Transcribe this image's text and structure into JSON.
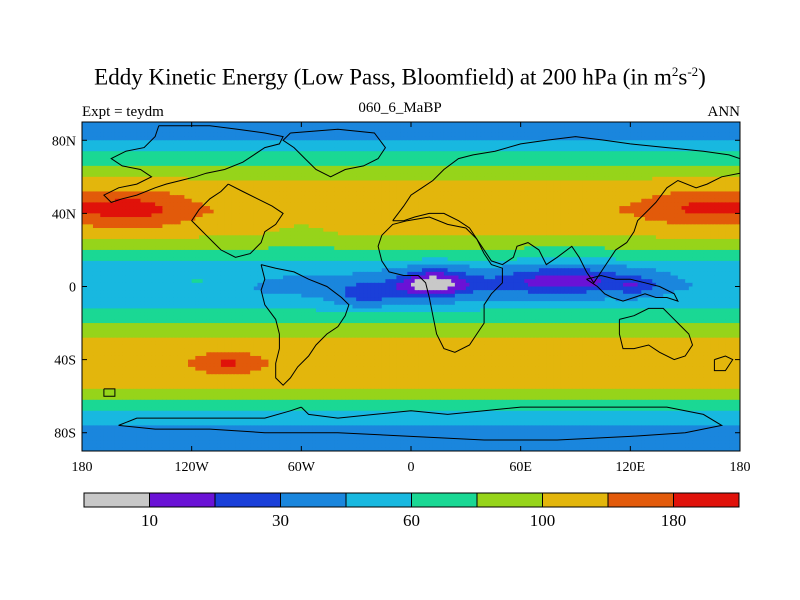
{
  "title": {
    "main": "Eddy Kinetic Energy (Low Pass, Bloomfield) at 200 hPa (in m",
    "sup1": "2",
    "mid": "s",
    "sup2": "-2",
    "end": ")"
  },
  "subtitle": {
    "left": "Expt = teydm",
    "center": "060_6_MaBP",
    "right": "ANN"
  },
  "chart_data": {
    "type": "heatmap",
    "title": "Eddy Kinetic Energy (Low Pass, Bloomfield) at 200 hPa (in m2s-2)",
    "projection": "cylindrical equidistant",
    "xlim": [
      -180,
      180
    ],
    "ylim": [
      -90,
      90
    ],
    "x_ticks": [
      {
        "value": -180,
        "label": "180"
      },
      {
        "value": -120,
        "label": "120W"
      },
      {
        "value": -60,
        "label": "60W"
      },
      {
        "value": 0,
        "label": "0"
      },
      {
        "value": 60,
        "label": "60E"
      },
      {
        "value": 120,
        "label": "120E"
      },
      {
        "value": 180,
        "label": "180"
      }
    ],
    "y_ticks": [
      {
        "value": 80,
        "label": "80N"
      },
      {
        "value": 40,
        "label": "40N"
      },
      {
        "value": 0,
        "label": "0"
      },
      {
        "value": -40,
        "label": "40S"
      },
      {
        "value": -80,
        "label": "80S"
      }
    ],
    "contour_levels": [
      10,
      20,
      30,
      45,
      60,
      80,
      100,
      140,
      180
    ],
    "colorbar": {
      "colors": [
        "#c8c8c8",
        "#6a12d6",
        "#1a3fd9",
        "#1a86dd",
        "#18b8e0",
        "#1ad894",
        "#96d41a",
        "#e3b60c",
        "#e25a0a",
        "#e0120a"
      ],
      "labels": [
        {
          "after_box": 1,
          "text": "10"
        },
        {
          "after_box": 3,
          "text": "30"
        },
        {
          "after_box": 5,
          "text": "60"
        },
        {
          "after_box": 7,
          "text": "100"
        },
        {
          "after_box": 9,
          "text": "180"
        }
      ]
    },
    "zonal_profile": [
      {
        "lat": 90,
        "value": 28
      },
      {
        "lat": 84,
        "value": 40
      },
      {
        "lat": 76,
        "value": 52
      },
      {
        "lat": 68,
        "value": 75
      },
      {
        "lat": 60,
        "value": 95
      },
      {
        "lat": 50,
        "value": 118
      },
      {
        "lat": 42,
        "value": 135
      },
      {
        "lat": 34,
        "value": 122
      },
      {
        "lat": 26,
        "value": 95
      },
      {
        "lat": 18,
        "value": 72
      },
      {
        "lat": 10,
        "value": 52
      },
      {
        "lat": 0,
        "value": 48
      },
      {
        "lat": -10,
        "value": 55
      },
      {
        "lat": -18,
        "value": 72
      },
      {
        "lat": -26,
        "value": 95
      },
      {
        "lat": -34,
        "value": 118
      },
      {
        "lat": -42,
        "value": 130
      },
      {
        "lat": -50,
        "value": 118
      },
      {
        "lat": -58,
        "value": 92
      },
      {
        "lat": -66,
        "value": 66
      },
      {
        "lat": -74,
        "value": 48
      },
      {
        "lat": -82,
        "value": 38
      },
      {
        "lat": -90,
        "value": 30
      }
    ],
    "anomalies": [
      {
        "lon": -150,
        "lat": 43,
        "dlon": 28,
        "dlat": 11,
        "amp": 60
      },
      {
        "lon": 160,
        "lat": 44,
        "dlon": 32,
        "dlat": 10,
        "amp": 55
      },
      {
        "lon": -100,
        "lat": -42,
        "dlon": 18,
        "dlat": 6,
        "amp": 55
      },
      {
        "lon": -60,
        "lat": 34,
        "dlon": 20,
        "dlat": 8,
        "amp": -20
      },
      {
        "lon": 12,
        "lat": 2,
        "dlon": 20,
        "dlat": 9,
        "amp": -35
      },
      {
        "lon": -25,
        "lat": -6,
        "dlon": 18,
        "dlat": 7,
        "amp": -20
      },
      {
        "lon": 85,
        "lat": 4,
        "dlon": 40,
        "dlat": 9,
        "amp": -30
      },
      {
        "lon": 125,
        "lat": 0,
        "dlon": 14,
        "dlat": 6,
        "amp": -15
      },
      {
        "lon": 0,
        "lat": 0,
        "dlon": 110,
        "dlat": 8,
        "amp": -12
      },
      {
        "lon": -115,
        "lat": 2,
        "dlon": 25,
        "dlat": 5,
        "amp": 15
      }
    ],
    "coastlines": [
      [
        [
          -138,
          88
        ],
        [
          -110,
          88
        ],
        [
          -95,
          86
        ],
        [
          -80,
          84
        ],
        [
          -70,
          82
        ],
        [
          -72,
          78
        ],
        [
          -80,
          76
        ],
        [
          -86,
          72
        ],
        [
          -92,
          68
        ],
        [
          -102,
          64
        ],
        [
          -112,
          62
        ],
        [
          -118,
          60
        ],
        [
          -126,
          58
        ],
        [
          -134,
          56
        ],
        [
          -140,
          54
        ],
        [
          -150,
          50
        ],
        [
          -158,
          48
        ],
        [
          -164,
          46
        ],
        [
          -168,
          50
        ],
        [
          -160,
          54
        ],
        [
          -150,
          56
        ],
        [
          -142,
          60
        ],
        [
          -148,
          64
        ],
        [
          -158,
          66
        ],
        [
          -164,
          70
        ],
        [
          -156,
          74
        ],
        [
          -146,
          76
        ],
        [
          -140,
          82
        ],
        [
          -138,
          88
        ]
      ],
      [
        [
          -66,
          84
        ],
        [
          -40,
          86
        ],
        [
          -20,
          84
        ],
        [
          -14,
          76
        ],
        [
          -18,
          70
        ],
        [
          -26,
          66
        ],
        [
          -36,
          64
        ],
        [
          -44,
          60
        ],
        [
          -52,
          64
        ],
        [
          -58,
          70
        ],
        [
          -64,
          76
        ],
        [
          -70,
          80
        ],
        [
          -66,
          84
        ]
      ],
      [
        [
          -100,
          56
        ],
        [
          -92,
          52
        ],
        [
          -84,
          48
        ],
        [
          -76,
          44
        ],
        [
          -70,
          40
        ],
        [
          -74,
          34
        ],
        [
          -80,
          30
        ],
        [
          -82,
          24
        ],
        [
          -88,
          18
        ],
        [
          -96,
          16
        ],
        [
          -104,
          20
        ],
        [
          -108,
          24
        ],
        [
          -112,
          28
        ],
        [
          -116,
          32
        ],
        [
          -120,
          36
        ],
        [
          -116,
          42
        ],
        [
          -110,
          48
        ],
        [
          -104,
          52
        ],
        [
          -100,
          56
        ]
      ],
      [
        [
          -82,
          12
        ],
        [
          -74,
          10
        ],
        [
          -64,
          8
        ],
        [
          -56,
          4
        ],
        [
          -46,
          0
        ],
        [
          -38,
          -6
        ],
        [
          -34,
          -10
        ],
        [
          -36,
          -16
        ],
        [
          -40,
          -22
        ],
        [
          -46,
          -26
        ],
        [
          -52,
          -32
        ],
        [
          -56,
          -38
        ],
        [
          -62,
          -44
        ],
        [
          -66,
          -50
        ],
        [
          -70,
          -54
        ],
        [
          -74,
          -50
        ],
        [
          -74,
          -42
        ],
        [
          -72,
          -34
        ],
        [
          -72,
          -26
        ],
        [
          -74,
          -18
        ],
        [
          -80,
          -10
        ],
        [
          -82,
          -2
        ],
        [
          -80,
          4
        ],
        [
          -82,
          12
        ]
      ],
      [
        [
          -10,
          36
        ],
        [
          -4,
          44
        ],
        [
          0,
          50
        ],
        [
          6,
          54
        ],
        [
          12,
          58
        ],
        [
          18,
          64
        ],
        [
          26,
          70
        ],
        [
          34,
          72
        ],
        [
          46,
          74
        ],
        [
          60,
          78
        ],
        [
          74,
          80
        ],
        [
          90,
          82
        ],
        [
          106,
          80
        ],
        [
          120,
          78
        ],
        [
          140,
          76
        ],
        [
          160,
          74
        ],
        [
          174,
          72
        ],
        [
          180,
          70
        ],
        [
          180,
          62
        ],
        [
          170,
          60
        ],
        [
          162,
          56
        ],
        [
          156,
          54
        ],
        [
          146,
          58
        ],
        [
          140,
          54
        ],
        [
          134,
          46
        ],
        [
          128,
          40
        ],
        [
          124,
          36
        ],
        [
          122,
          30
        ],
        [
          118,
          24
        ],
        [
          112,
          20
        ],
        [
          108,
          14
        ],
        [
          104,
          8
        ],
        [
          100,
          2
        ],
        [
          96,
          8
        ],
        [
          92,
          16
        ],
        [
          88,
          22
        ],
        [
          80,
          16
        ],
        [
          74,
          12
        ],
        [
          70,
          20
        ],
        [
          64,
          24
        ],
        [
          58,
          22
        ],
        [
          56,
          16
        ],
        [
          50,
          12
        ],
        [
          44,
          14
        ],
        [
          36,
          26
        ],
        [
          32,
          32
        ],
        [
          26,
          36
        ],
        [
          18,
          40
        ],
        [
          10,
          40
        ],
        [
          2,
          38
        ],
        [
          -4,
          36
        ],
        [
          -10,
          36
        ]
      ],
      [
        [
          -16,
          28
        ],
        [
          -10,
          34
        ],
        [
          -2,
          36
        ],
        [
          10,
          38
        ],
        [
          20,
          34
        ],
        [
          30,
          32
        ],
        [
          36,
          26
        ],
        [
          40,
          18
        ],
        [
          44,
          12
        ],
        [
          50,
          10
        ],
        [
          50,
          2
        ],
        [
          44,
          -4
        ],
        [
          40,
          -10
        ],
        [
          40,
          -20
        ],
        [
          36,
          -26
        ],
        [
          32,
          -32
        ],
        [
          24,
          -36
        ],
        [
          18,
          -34
        ],
        [
          14,
          -26
        ],
        [
          12,
          -16
        ],
        [
          10,
          -6
        ],
        [
          8,
          2
        ],
        [
          4,
          6
        ],
        [
          -4,
          6
        ],
        [
          -12,
          8
        ],
        [
          -16,
          14
        ],
        [
          -18,
          22
        ],
        [
          -16,
          28
        ]
      ],
      [
        [
          114,
          -18
        ],
        [
          122,
          -16
        ],
        [
          130,
          -12
        ],
        [
          138,
          -12
        ],
        [
          142,
          -16
        ],
        [
          146,
          -20
        ],
        [
          152,
          -26
        ],
        [
          154,
          -32
        ],
        [
          150,
          -38
        ],
        [
          144,
          -40
        ],
        [
          136,
          -36
        ],
        [
          130,
          -32
        ],
        [
          122,
          -34
        ],
        [
          116,
          -34
        ],
        [
          114,
          -26
        ],
        [
          114,
          -18
        ]
      ],
      [
        [
          96,
          4
        ],
        [
          102,
          0
        ],
        [
          106,
          -4
        ],
        [
          110,
          -6
        ],
        [
          116,
          -8
        ],
        [
          122,
          -6
        ],
        [
          128,
          -4
        ],
        [
          134,
          -6
        ],
        [
          140,
          -6
        ],
        [
          146,
          -8
        ],
        [
          144,
          -4
        ],
        [
          136,
          0
        ],
        [
          128,
          2
        ],
        [
          120,
          4
        ],
        [
          112,
          4
        ],
        [
          104,
          6
        ],
        [
          96,
          4
        ]
      ],
      [
        [
          -60,
          -66
        ],
        [
          -56,
          -70
        ],
        [
          -40,
          -72
        ],
        [
          -20,
          -70
        ],
        [
          0,
          -68
        ],
        [
          20,
          -70
        ],
        [
          40,
          -68
        ],
        [
          60,
          -66
        ],
        [
          80,
          -66
        ],
        [
          100,
          -66
        ],
        [
          120,
          -66
        ],
        [
          140,
          -66
        ],
        [
          160,
          -70
        ],
        [
          170,
          -76
        ],
        [
          150,
          -80
        ],
        [
          120,
          -82
        ],
        [
          80,
          -84
        ],
        [
          40,
          -84
        ],
        [
          0,
          -82
        ],
        [
          -40,
          -80
        ],
        [
          -80,
          -80
        ],
        [
          -110,
          -78
        ],
        [
          -140,
          -78
        ],
        [
          -160,
          -76
        ],
        [
          -150,
          -72
        ],
        [
          -120,
          -72
        ],
        [
          -100,
          -72
        ],
        [
          -80,
          -72
        ],
        [
          -66,
          -68
        ],
        [
          -60,
          -66
        ]
      ],
      [
        [
          166,
          -40
        ],
        [
          172,
          -38
        ],
        [
          176,
          -40
        ],
        [
          172,
          -46
        ],
        [
          166,
          -46
        ],
        [
          166,
          -40
        ]
      ],
      [
        [
          -168,
          -56
        ],
        [
          -162,
          -56
        ],
        [
          -162,
          -60
        ],
        [
          -168,
          -60
        ],
        [
          -168,
          -56
        ]
      ]
    ]
  }
}
